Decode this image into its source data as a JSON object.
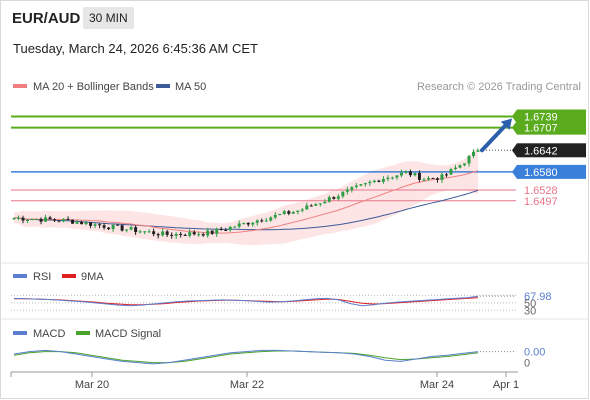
{
  "header": {
    "symbol": "EUR/AUD",
    "interval": "30 MIN",
    "datetime": "Tuesday, March 24, 2026 6:45:36 AM CET"
  },
  "legend": {
    "ma20_label": "MA 20 + Bollinger Bands",
    "ma50_label": "MA 50",
    "credit": "Research © 2026 Trading Central"
  },
  "colors": {
    "candle_up": "#2e9e46",
    "candle_down": "#1f1f1f",
    "ma20": "#f08080",
    "bollinger_fill": "#fde0e0",
    "ma50": "#3d5a99",
    "resistance": "#5aab1e",
    "pivot": "#3a7fd9",
    "support": "#e8768a",
    "arrow": "#2b5fab",
    "rsi": "#5b7fcf",
    "rsi_ma": "#e02020",
    "macd": "#5b7fcf",
    "macd_signal": "#4aa32a"
  },
  "chart_data": [
    {
      "type": "candlestick",
      "ylim": [
        1.635,
        1.6795
      ],
      "x_ticks": [
        "Mar 20",
        "Mar 22",
        "Mar 24",
        "Apr 1"
      ],
      "levels": [
        {
          "value": 1.6739,
          "label": "1.6739",
          "kind": "resistance",
          "style": "badge"
        },
        {
          "value": 1.6707,
          "label": "1.6707",
          "kind": "resistance",
          "style": "badge"
        },
        {
          "value": 1.6642,
          "label": "1.6642",
          "kind": "last",
          "style": "badge"
        },
        {
          "value": 1.658,
          "label": "1.6580",
          "kind": "pivot",
          "style": "badge"
        },
        {
          "value": 1.6528,
          "label": "1.6528",
          "kind": "support",
          "style": "text"
        },
        {
          "value": 1.6497,
          "label": "1.6497",
          "kind": "support",
          "style": "text"
        }
      ],
      "forecast_arrow": {
        "from": 1.6642,
        "to": 1.6739
      }
    },
    {
      "type": "line",
      "name": "RSI",
      "series": [
        {
          "name": "RSI",
          "values": [
            62,
            61,
            60,
            59,
            57,
            55,
            53,
            50,
            47,
            44,
            42,
            44,
            47,
            50,
            53,
            55,
            56,
            57,
            58,
            57,
            56,
            54,
            52,
            53,
            55,
            58,
            61,
            62,
            58,
            48,
            42,
            45,
            49,
            52,
            54,
            56,
            58,
            60,
            62,
            64,
            67.98
          ]
        },
        {
          "name": "9MA",
          "values": [
            61,
            61,
            60,
            59,
            58,
            56,
            54,
            52,
            49,
            47,
            45,
            45,
            46,
            48,
            51,
            53,
            55,
            56,
            57,
            57,
            56,
            55,
            54,
            53,
            54,
            56,
            58,
            60,
            59,
            54,
            49,
            47,
            48,
            50,
            52,
            54,
            56,
            58,
            60,
            62,
            64
          ]
        }
      ],
      "ylim": [
        20,
        90
      ],
      "value_label": "67.98",
      "reference_levels": [
        70,
        50,
        30
      ]
    },
    {
      "type": "line",
      "name": "MACD",
      "series": [
        {
          "name": "MACD",
          "values": [
            0.3,
            0.5,
            0.6,
            0.5,
            0.3,
            0.1,
            -0.1,
            -0.3,
            -0.4,
            -0.5,
            -0.4,
            -0.2,
            0.0,
            0.2,
            0.4,
            0.5,
            0.6,
            0.6,
            0.55,
            0.5,
            0.45,
            0.4,
            0.3,
            0.1,
            -0.2,
            -0.3,
            -0.1,
            0.1,
            0.2,
            0.35,
            0.5
          ]
        },
        {
          "name": "MACD Signal",
          "values": [
            0.2,
            0.4,
            0.5,
            0.5,
            0.4,
            0.2,
            0.0,
            -0.2,
            -0.3,
            -0.4,
            -0.4,
            -0.3,
            -0.1,
            0.1,
            0.3,
            0.4,
            0.5,
            0.55,
            0.55,
            0.5,
            0.45,
            0.4,
            0.35,
            0.2,
            0.0,
            -0.15,
            -0.1,
            0.0,
            0.1,
            0.25,
            0.4
          ]
        }
      ],
      "ylim": [
        -1.0,
        1.2
      ],
      "value_label": "0.00",
      "zero_label": "0"
    }
  ]
}
